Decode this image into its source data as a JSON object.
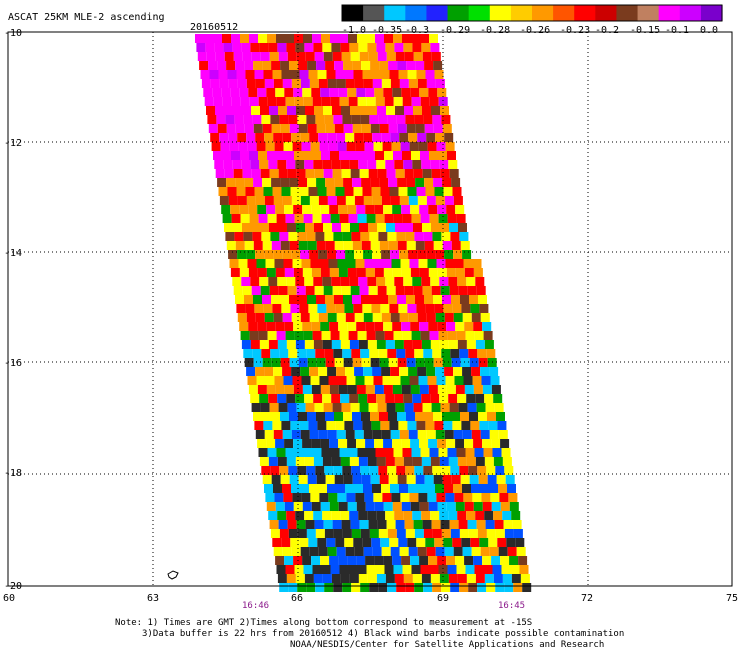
{
  "header": {
    "title": "ASCAT 25KM MLE-2 ascending",
    "date": "20160512"
  },
  "colorbar": {
    "colors": [
      "#000000",
      "#555555",
      "#00c8ff",
      "#0078ff",
      "#2222ff",
      "#00a000",
      "#00e000",
      "#ffff00",
      "#ffcc00",
      "#ff9900",
      "#ff5500",
      "#ff0000",
      "#cc0000",
      "#7a3b1e",
      "#c08060",
      "#ff00ff",
      "#cc00ff",
      "#7a00cc"
    ],
    "labels": [
      "-1.0",
      "-0.35",
      "-0.3",
      "-0.29",
      "-0.28",
      "-0.26",
      "-0.23",
      "-0.2",
      "-0.15",
      "-0.1",
      "0.0"
    ]
  },
  "axes": {
    "lat_labels": [
      "-10",
      "-12",
      "-14",
      "-16",
      "-18",
      "-20"
    ],
    "lon_labels": [
      "60",
      "63",
      "66",
      "69",
      "72",
      "75"
    ],
    "lat_range": [
      -10,
      -20
    ],
    "lon_range": [
      60,
      75
    ]
  },
  "times": {
    "left": "16:46",
    "right": "16:45"
  },
  "notes": {
    "line1": "Note: 1) Times are GMT 2)Times along bottom correspond to measurement at -15S",
    "line2": "3)Data buffer is 22 hrs from 20160512 4) Black wind barbs indicate possible contamination",
    "line3": "NOAA/NESDIS/Center for Satellite Applications and Research"
  },
  "palette": {
    "black": "#2a2a2a",
    "cyan": "#00c8ff",
    "blue": "#0050ff",
    "green": "#00a000",
    "yellow": "#ffff00",
    "orange": "#ff9900",
    "red": "#ff0000",
    "brown": "#7a3b1e",
    "magenta": "#ff00ff",
    "purple": "#cc00ff"
  }
}
